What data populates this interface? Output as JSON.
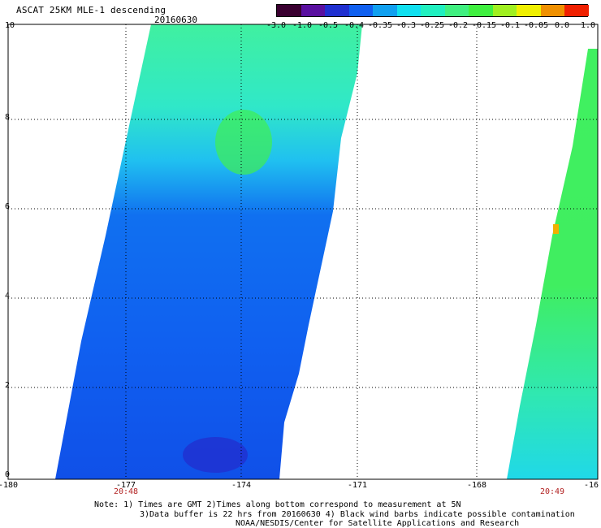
{
  "header": {
    "title": "ASCAT 25KM MLE-1 descending",
    "date": "20160630"
  },
  "colorbar": {
    "ticks": [
      "-3.0",
      "-1.0",
      "-0.5",
      "-0.4",
      "-0.35",
      "-0.3",
      "-0.25",
      "-0.2",
      "-0.15",
      "-0.1",
      "-0.05",
      "0.0",
      "1.0"
    ],
    "colors": [
      "#3a0030",
      "#5a10a0",
      "#2030d0",
      "#1060f0",
      "#10a0f0",
      "#10e0f0",
      "#20f0c0",
      "#40f080",
      "#40f040",
      "#a0f020",
      "#f0f000",
      "#f09000",
      "#f02000"
    ]
  },
  "axes": {
    "x_ticks": [
      "-180",
      "-177",
      "-174",
      "-171",
      "-168",
      "-16"
    ],
    "y_ticks": [
      "10",
      "8",
      "6",
      "4",
      "2",
      "0"
    ]
  },
  "times": {
    "left": "20:48",
    "right": "20:49"
  },
  "notes": {
    "line1": "Note: 1) Times are GMT 2)Times along bottom correspond to measurement at 5N",
    "line2": "3)Data buffer is 22 hrs from 20160630 4) Black wind barbs indicate possible contamination",
    "line3": "NOAA/NESDIS/Center for Satellite Applications and Research"
  }
}
